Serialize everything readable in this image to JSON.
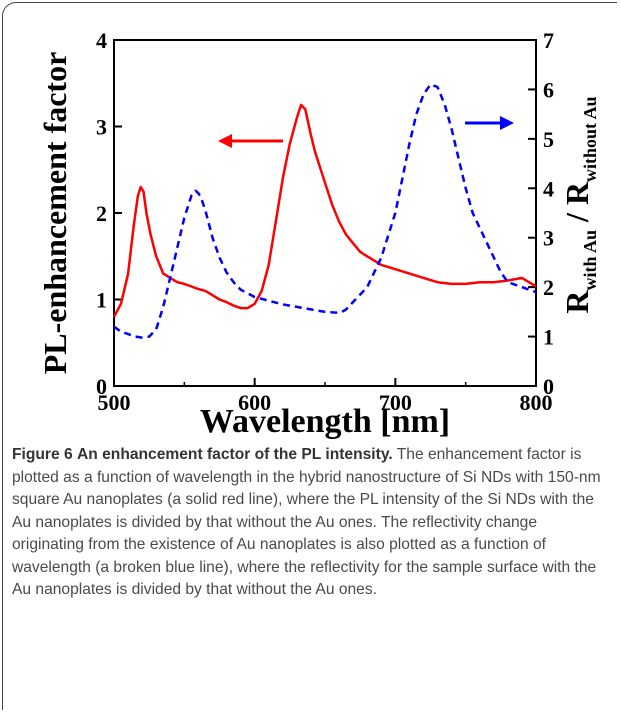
{
  "figure": {
    "caption_lead": "Figure 6",
    "caption_title": "An enhancement factor of the PL intensity.",
    "caption_body": "The enhancement factor is plotted as a function of wavelength in the hybrid nanostructure of Si NDs with 150-nm square Au nanoplates (a solid red line), where the PL intensity of the Si NDs with the Au nanoplates is divided by that without the Au ones. The reflectivity change originating from the existence of Au nanoplates is also plotted as a function of wavelength (a broken blue line), where the reflectivity for the sample surface with the Au nanoplates is divided by that without the Au ones."
  },
  "chart_data": {
    "type": "line",
    "xlabel": "Wavelength [nm]",
    "ylabel_left": "PL-enhancement factor",
    "ylabel_right": {
      "main": "R",
      "sub1": "with Au",
      "sep": " / R",
      "sub2": "without Au"
    },
    "xlim": [
      500,
      800
    ],
    "ylim_left": [
      0,
      4
    ],
    "ylim_right": [
      0,
      7
    ],
    "x_ticks": [
      "500",
      "600",
      "700",
      "800"
    ],
    "y_ticks_left": [
      "0",
      "1",
      "2",
      "3",
      "4"
    ],
    "y_ticks_right": [
      "0",
      "1",
      "2",
      "3",
      "4",
      "5",
      "6",
      "7"
    ],
    "grid": false,
    "series": [
      {
        "axis": "left",
        "style": "solid",
        "color": "#ff0000",
        "x": [
          500,
          505,
          510,
          514,
          517,
          519,
          521,
          523,
          526,
          530,
          535,
          540,
          545,
          550,
          555,
          560,
          565,
          570,
          575,
          580,
          585,
          590,
          595,
          600,
          605,
          610,
          615,
          620,
          625,
          630,
          633,
          636,
          638,
          640,
          643,
          646,
          650,
          655,
          660,
          665,
          670,
          675,
          680,
          685,
          690,
          700,
          710,
          720,
          730,
          740,
          750,
          760,
          770,
          780,
          790,
          795,
          800
        ],
        "y": [
          0.8,
          0.95,
          1.3,
          1.85,
          2.2,
          2.3,
          2.25,
          2.0,
          1.75,
          1.5,
          1.3,
          1.25,
          1.2,
          1.18,
          1.15,
          1.12,
          1.1,
          1.05,
          1.0,
          0.97,
          0.93,
          0.9,
          0.9,
          0.95,
          1.1,
          1.4,
          1.9,
          2.4,
          2.8,
          3.1,
          3.25,
          3.2,
          3.05,
          2.9,
          2.7,
          2.55,
          2.35,
          2.1,
          1.9,
          1.75,
          1.65,
          1.55,
          1.5,
          1.45,
          1.4,
          1.35,
          1.3,
          1.25,
          1.2,
          1.18,
          1.18,
          1.2,
          1.2,
          1.22,
          1.25,
          1.2,
          1.15
        ]
      },
      {
        "axis": "right",
        "style": "dashed",
        "color": "#0000ff",
        "x": [
          500,
          505,
          510,
          515,
          520,
          525,
          530,
          535,
          540,
          545,
          550,
          555,
          558,
          560,
          562,
          565,
          570,
          575,
          580,
          585,
          590,
          600,
          620,
          640,
          650,
          660,
          662,
          665,
          670,
          680,
          690,
          700,
          705,
          710,
          715,
          720,
          725,
          730,
          735,
          740,
          745,
          750,
          755,
          760,
          765,
          770,
          775,
          780,
          790,
          800
        ],
        "y": [
          1.2,
          1.1,
          1.05,
          1.0,
          0.98,
          1.0,
          1.15,
          1.6,
          2.2,
          2.8,
          3.4,
          3.85,
          3.95,
          3.9,
          3.8,
          3.55,
          3.0,
          2.6,
          2.3,
          2.1,
          1.95,
          1.8,
          1.65,
          1.55,
          1.5,
          1.48,
          1.5,
          1.55,
          1.7,
          2.0,
          2.6,
          3.5,
          4.2,
          4.9,
          5.5,
          5.9,
          6.1,
          6.05,
          5.7,
          5.2,
          4.6,
          4.0,
          3.5,
          3.2,
          2.9,
          2.6,
          2.3,
          2.1,
          2.0,
          1.9
        ]
      }
    ],
    "annotations": [
      {
        "type": "arrow",
        "direction": "left",
        "color": "#ff0000",
        "points_to": "left-axis"
      },
      {
        "type": "arrow",
        "direction": "right",
        "color": "#0000ff",
        "points_to": "right-axis"
      }
    ]
  }
}
